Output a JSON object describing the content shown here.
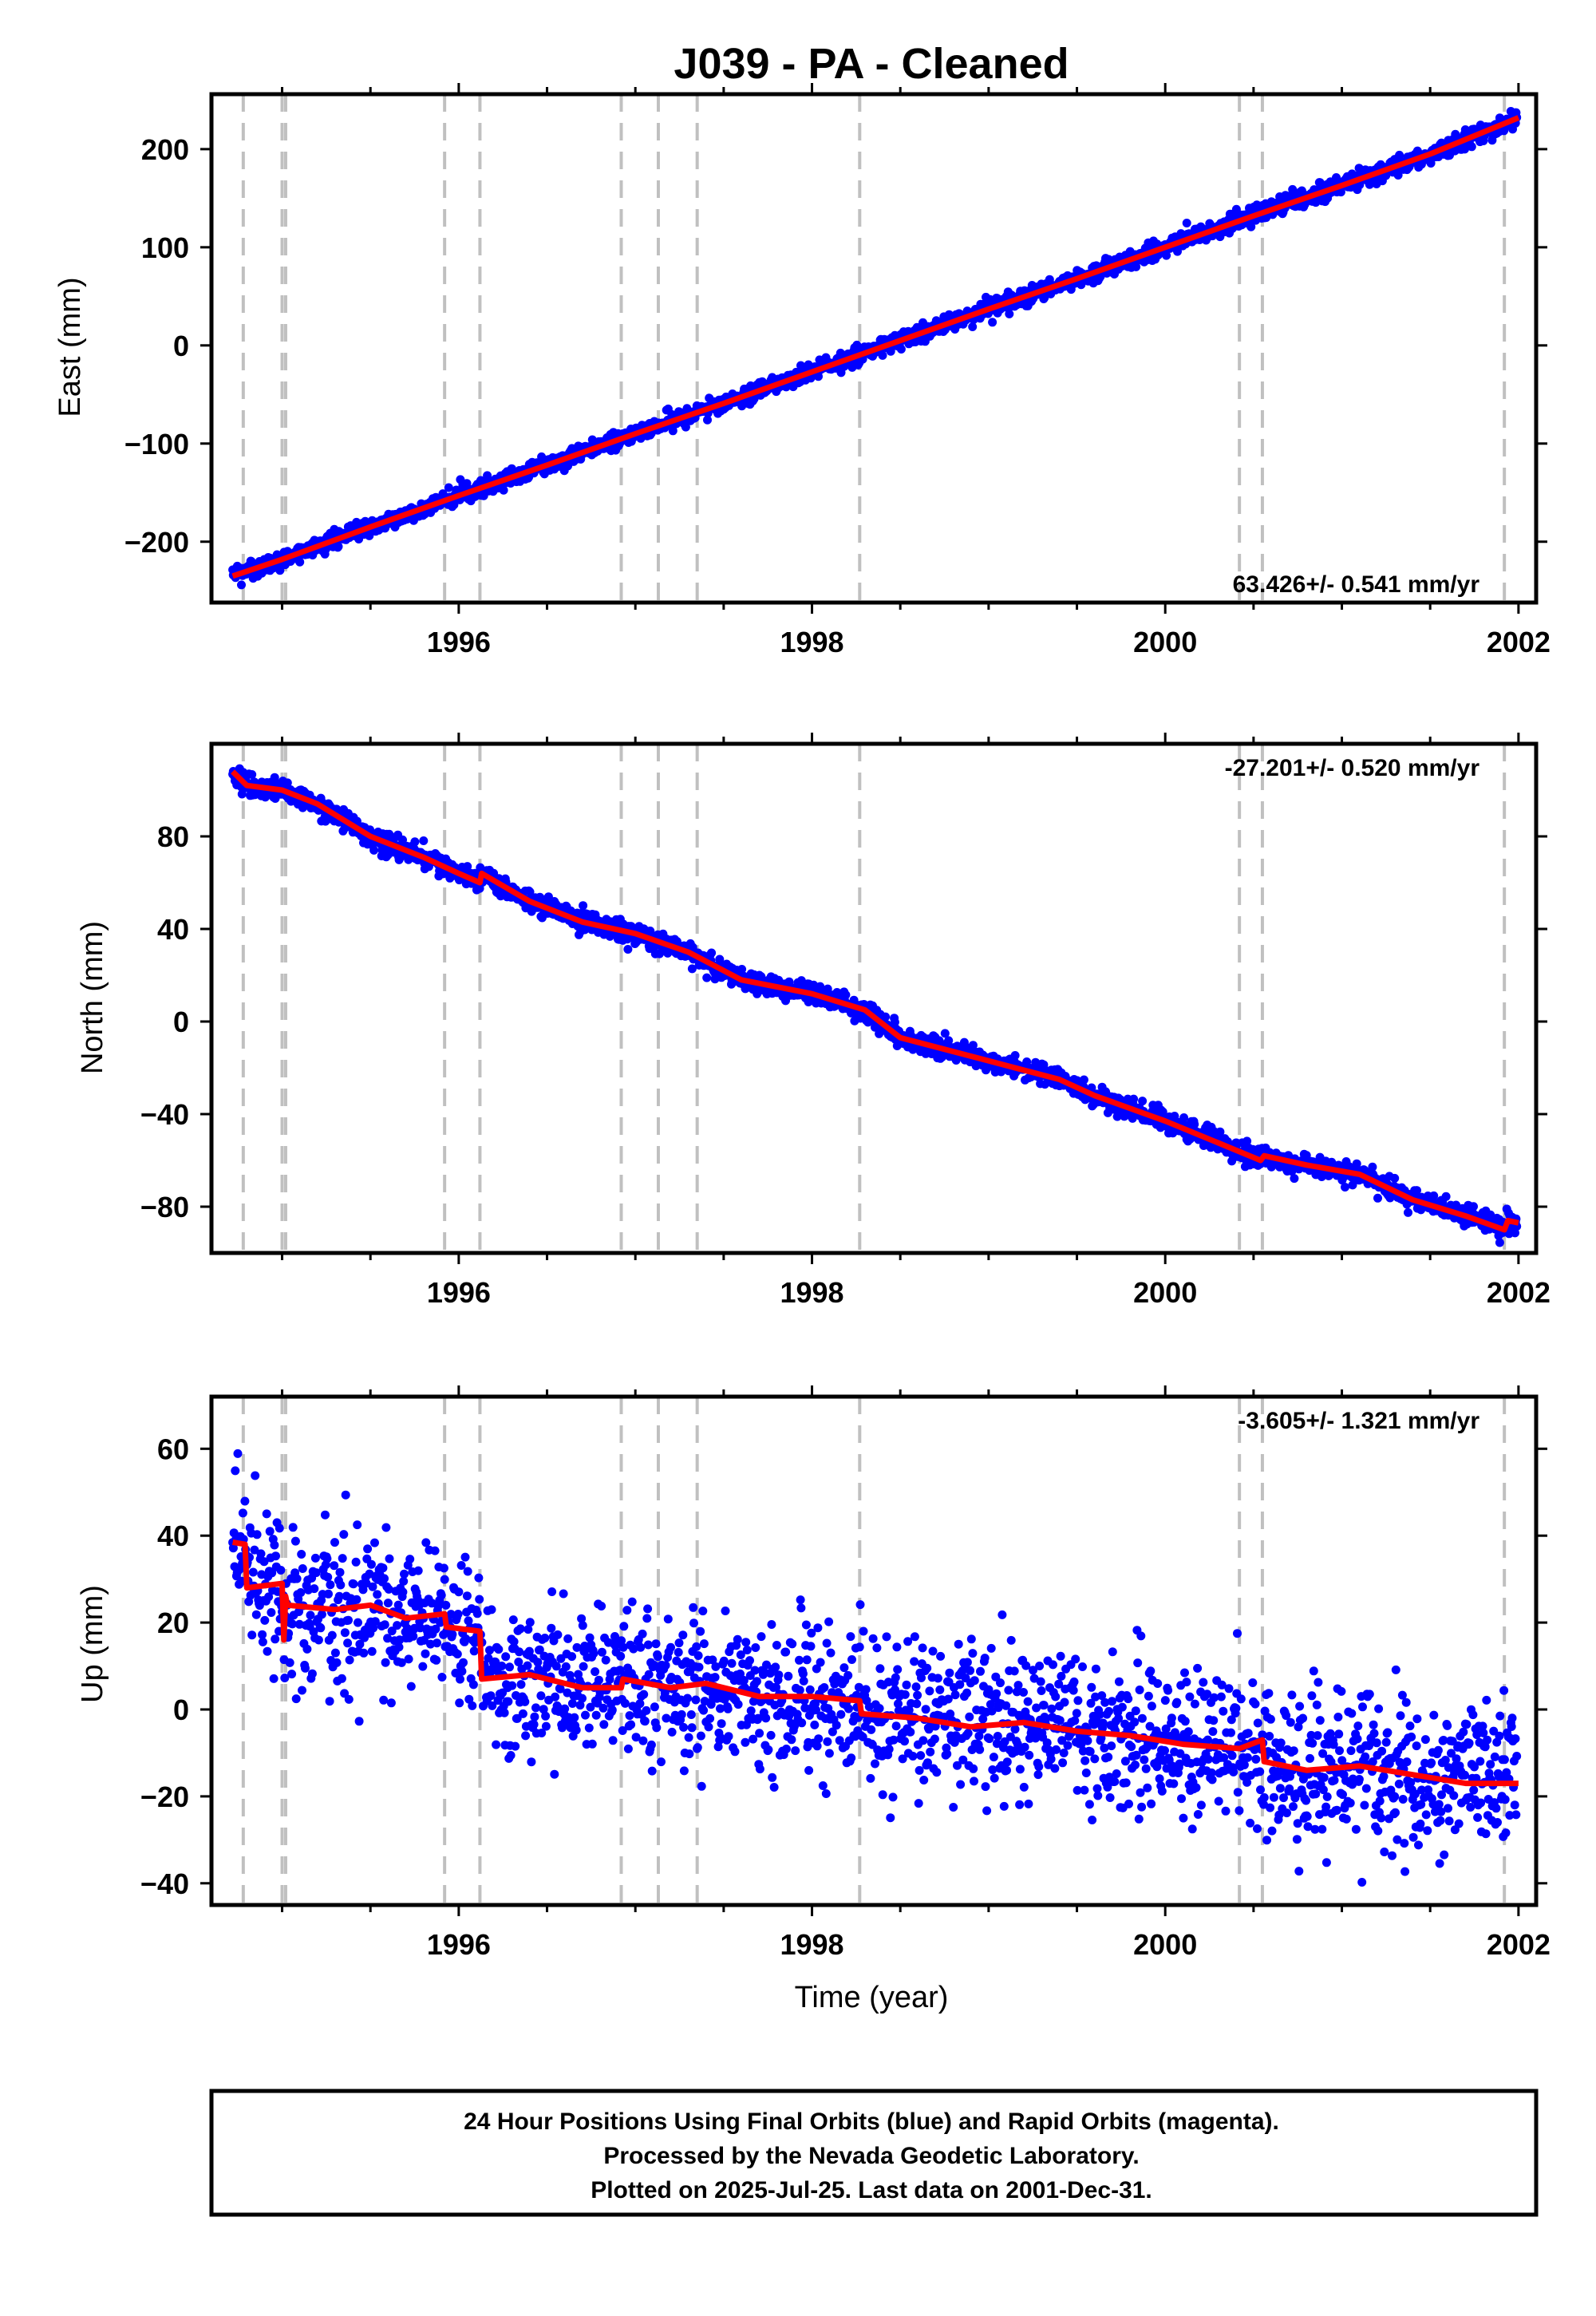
{
  "title": "J039  - PA - Cleaned",
  "colors": {
    "final_orbits": "#0000ff",
    "model": "#ff0000",
    "step_lines": "#c0c0c0"
  },
  "footer": {
    "line1": "24 Hour Positions Using Final Orbits (blue) and Rapid Orbits (magenta).",
    "line2": "Processed by the Nevada Geodetic Laboratory.",
    "line3": "Plotted on 2025-Jul-25. Last data on 2001-Dec-31."
  },
  "chart_data": [
    {
      "type": "scatter",
      "ylabel": "East (mm)",
      "xlabel": "",
      "xlim": [
        1994.6,
        2002.1
      ],
      "ylim": [
        -262,
        256
      ],
      "x_ticks": [
        1996,
        1998,
        2000,
        2002
      ],
      "y_ticks": [
        -200,
        -100,
        0,
        100,
        200
      ],
      "rate_label": "63.426+/- 0.541 mm/yr",
      "rate_position": "bottom-right",
      "step_lines_x": [
        1994.78,
        1995.0,
        1995.02,
        1995.92,
        1996.12,
        1996.92,
        1997.13,
        1997.35,
        1998.27,
        2000.42,
        2000.55,
        2001.92
      ],
      "model_x": [
        1994.72,
        1995.0,
        1995.5,
        1996.0,
        1996.5,
        1997.0,
        1997.5,
        1998.0,
        1998.5,
        1999.0,
        1999.5,
        2000.0,
        2000.5,
        2001.0,
        2001.5,
        2002.0
      ],
      "model_y": [
        -235,
        -218,
        -185,
        -153,
        -122,
        -90,
        -59,
        -27,
        5,
        37,
        68,
        100,
        132,
        163,
        195,
        232
      ],
      "series": [
        {
          "marker": "dot",
          "noise_mm": 4.5,
          "x_start": 1994.72,
          "x_end": 2001.99,
          "n_points": 2200
        }
      ]
    },
    {
      "type": "scatter",
      "ylabel": "North (mm)",
      "xlabel": "",
      "xlim": [
        1994.6,
        2002.1
      ],
      "ylim": [
        -100,
        120
      ],
      "x_ticks": [
        1996,
        1998,
        2000,
        2002
      ],
      "y_ticks": [
        -80,
        -40,
        0,
        40,
        80
      ],
      "rate_label": "-27.201+/- 0.520 mm/yr",
      "rate_position": "top-right",
      "step_lines_x": [
        1994.78,
        1995.0,
        1995.02,
        1995.92,
        1996.12,
        1996.92,
        1997.13,
        1997.35,
        1998.27,
        2000.42,
        2000.55,
        2001.92
      ],
      "model_x": [
        1994.72,
        1994.8,
        1995.0,
        1995.2,
        1995.5,
        1995.8,
        1996.0,
        1996.12,
        1996.13,
        1996.4,
        1996.7,
        1997.0,
        1997.3,
        1997.6,
        1998.0,
        1998.3,
        1998.5,
        1999.0,
        1999.4,
        1999.6,
        2000.0,
        2000.35,
        2000.54,
        2000.56,
        2000.8,
        2001.1,
        2001.4,
        2001.7,
        2001.92,
        2001.94,
        2002.0
      ],
      "model_y": [
        108,
        102,
        100,
        94,
        80,
        71,
        64,
        60,
        64,
        52,
        43,
        38,
        30,
        18,
        12,
        5,
        -7,
        -17,
        -25,
        -32,
        -43,
        -54,
        -60,
        -58,
        -62,
        -66,
        -77,
        -84,
        -90,
        -86,
        -87
      ],
      "series": [
        {
          "marker": "dot",
          "noise_mm": 2.2,
          "x_start": 1994.72,
          "x_end": 2001.99,
          "n_points": 2200
        }
      ]
    },
    {
      "type": "scatter",
      "ylabel": "Up (mm)",
      "xlabel": "Time (year)",
      "xlim": [
        1994.6,
        2002.1
      ],
      "ylim": [
        -45,
        72
      ],
      "x_ticks": [
        1996,
        1998,
        2000,
        2002
      ],
      "y_ticks": [
        -40,
        -20,
        0,
        20,
        40,
        60
      ],
      "rate_label": "-3.605+/- 1.321 mm/yr",
      "rate_position": "top-right",
      "step_lines_x": [
        1994.78,
        1995.0,
        1995.02,
        1995.92,
        1996.12,
        1996.92,
        1997.13,
        1997.35,
        1998.27,
        2000.42,
        2000.55,
        2001.92
      ],
      "model_x": [
        1994.72,
        1994.79,
        1994.8,
        1995.0,
        1995.01,
        1995.02,
        1995.03,
        1995.3,
        1995.5,
        1995.7,
        1995.92,
        1995.93,
        1996.12,
        1996.13,
        1996.4,
        1996.7,
        1996.92,
        1996.93,
        1997.2,
        1997.4,
        1997.7,
        1998.0,
        1998.27,
        1998.28,
        1998.6,
        1998.9,
        1999.2,
        1999.5,
        1999.8,
        2000.1,
        2000.42,
        2000.55,
        2000.56,
        2000.8,
        2001.1,
        2001.4,
        2001.7,
        2002.0
      ],
      "model_y": [
        38.5,
        38,
        28,
        29,
        16,
        26,
        24,
        23,
        24,
        21,
        22,
        19,
        18,
        7,
        8,
        5,
        5,
        7,
        5,
        6,
        3,
        3,
        2,
        -1,
        -2,
        -4,
        -3,
        -5,
        -6,
        -8,
        -9,
        -7,
        -12,
        -14,
        -13,
        -15,
        -17,
        -17
      ],
      "series": [
        {
          "marker": "dot",
          "noise_mm": 8.5,
          "x_start": 1994.72,
          "x_end": 2001.99,
          "n_points": 2000
        }
      ]
    }
  ]
}
